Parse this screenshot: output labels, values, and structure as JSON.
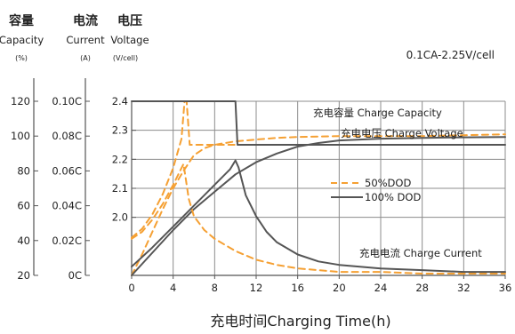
{
  "chart_data": {
    "type": "line",
    "condition": "0.1CA-2.25V/cell",
    "xlabel": "充电时间Charging Time(h)",
    "x_ticks": [
      0,
      4,
      8,
      12,
      16,
      20,
      24,
      28,
      32,
      36
    ],
    "xlim": [
      0,
      36
    ],
    "axes": [
      {
        "cn": "容量",
        "en": "Capacity",
        "unit": "(%)",
        "ticks": [
          "120",
          "100",
          "80",
          "60",
          "40",
          "20"
        ],
        "ylim": [
          20,
          120
        ]
      },
      {
        "cn": "电流",
        "en": "Current",
        "unit": "(A)",
        "ticks": [
          "0.10C",
          "0.08C",
          "0.06C",
          "0.04C",
          "0.02C",
          "0C"
        ],
        "ylim": [
          0,
          0.1
        ]
      },
      {
        "cn": "电压",
        "en": "Voltage",
        "unit": "(V/cell)",
        "ticks": [
          "2.4",
          "2.3",
          "2.2",
          "2.1",
          "2.0"
        ],
        "ylim": [
          1.8,
          2.4
        ]
      }
    ],
    "legend": [
      {
        "label": "50%DOD",
        "style": "dashed",
        "color": "#f5a033"
      },
      {
        "label": "100% DOD",
        "style": "solid",
        "color": "#555555"
      }
    ],
    "annotations": [
      {
        "text": "充电容量 Charge Capacity"
      },
      {
        "text": "充电电压 Charge Voltage"
      },
      {
        "text": "充电电流  Charge Current"
      }
    ],
    "series": [
      {
        "quantity": "capacity",
        "dod": "50%DOD",
        "axis": "Capacity",
        "style": "dashed",
        "x": [
          0,
          1,
          2,
          3,
          4,
          5,
          6,
          7,
          8,
          10,
          12,
          14,
          16,
          20,
          24,
          28,
          32,
          36
        ],
        "y": [
          20,
          32,
          45,
          58,
          70,
          80,
          89,
          93,
          95,
          97,
          98,
          99,
          99.5,
          100,
          100,
          100,
          100.5,
          101
        ]
      },
      {
        "quantity": "capacity",
        "dod": "100% DOD",
        "axis": "Capacity",
        "style": "solid",
        "x": [
          0,
          2,
          4,
          6,
          8,
          10,
          12,
          14,
          16,
          18,
          20,
          24,
          28,
          32,
          36
        ],
        "y": [
          20,
          33,
          46,
          58,
          68,
          78,
          85,
          90,
          94,
          96,
          97.5,
          98.5,
          99,
          99.3,
          99.5
        ]
      },
      {
        "quantity": "voltage",
        "dod": "50%DOD",
        "axis": "Voltage",
        "style": "dashed",
        "x": [
          0,
          1,
          2,
          3,
          4,
          4.8,
          5.1,
          5.3,
          5.6,
          6,
          8,
          12,
          20,
          28,
          36
        ],
        "y": [
          1.93,
          1.96,
          2.01,
          2.08,
          2.17,
          2.27,
          2.4,
          2.4,
          2.25,
          2.25,
          2.25,
          2.25,
          2.25,
          2.25,
          2.25
        ]
      },
      {
        "quantity": "voltage",
        "dod": "100% DOD",
        "axis": "Voltage",
        "style": "solid",
        "x": [
          0,
          10,
          10.2,
          10.5,
          11,
          14,
          20,
          28,
          36
        ],
        "y": [
          2.4,
          2.4,
          2.25,
          2.25,
          2.25,
          2.25,
          2.25,
          2.25,
          2.25
        ]
      },
      {
        "quantity": "current",
        "dod": "50%DOD",
        "axis": "Current",
        "style": "dashed",
        "x": [
          0,
          1,
          2,
          3,
          4,
          4.5,
          5,
          5.2,
          5.5,
          6,
          7,
          8,
          10,
          12,
          14,
          16,
          20,
          24,
          28,
          32,
          36
        ],
        "y": [
          0.021,
          0.025,
          0.032,
          0.041,
          0.052,
          0.058,
          0.064,
          0.056,
          0.044,
          0.034,
          0.026,
          0.021,
          0.014,
          0.009,
          0.006,
          0.004,
          0.002,
          0.002,
          0.001,
          0.001,
          0.001
        ]
      },
      {
        "quantity": "current",
        "dod": "100% DOD",
        "axis": "Current",
        "style": "solid",
        "x": [
          0,
          2,
          4,
          6,
          8,
          9.5,
          10,
          10.3,
          11,
          12,
          13,
          14,
          16,
          18,
          20,
          24,
          28,
          32,
          36
        ],
        "y": [
          0.005,
          0.016,
          0.028,
          0.04,
          0.052,
          0.061,
          0.066,
          0.062,
          0.046,
          0.034,
          0.025,
          0.019,
          0.012,
          0.008,
          0.006,
          0.004,
          0.003,
          0.002,
          0.002
        ]
      }
    ]
  }
}
